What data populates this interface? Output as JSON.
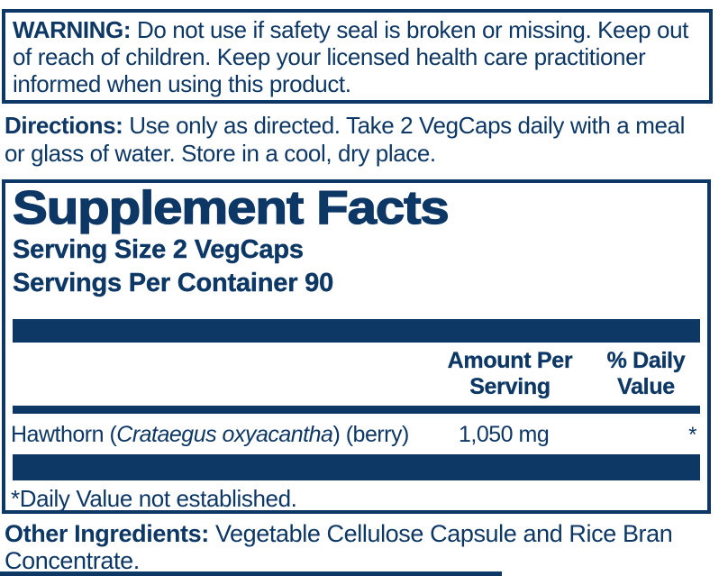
{
  "colors": {
    "navy": "#0d3765",
    "background": "#ffffff"
  },
  "warning": {
    "label": "WARNING:",
    "text": "Do not use if safety seal is broken or missing. Keep out of reach of children. Keep your licensed health care practitioner informed when using this product."
  },
  "directions": {
    "label": "Directions:",
    "text": "Use only as directed. Take 2 VegCaps daily with a meal or glass of water. Store in a cool, dry place."
  },
  "supplement_facts": {
    "title": "Supplement Facts",
    "serving_size": "Serving Size 2 VegCaps",
    "servings_per_container": "Servings Per Container 90",
    "columns": {
      "amount_line1": "Amount Per",
      "amount_line2": "Serving",
      "dv_line1": "% Daily",
      "dv_line2": "Value"
    },
    "rows": [
      {
        "name_prefix": "Hawthorn (",
        "species_italic": "Crataegus oxyacantha",
        "name_suffix": ") (berry)",
        "amount": "1,050 mg",
        "daily_value": "*"
      }
    ],
    "footnote": "*Daily Value not established."
  },
  "other_ingredients": {
    "label": "Other Ingredients:",
    "text": "Vegetable Cellulose Capsule and Rice Bran Concentrate."
  }
}
